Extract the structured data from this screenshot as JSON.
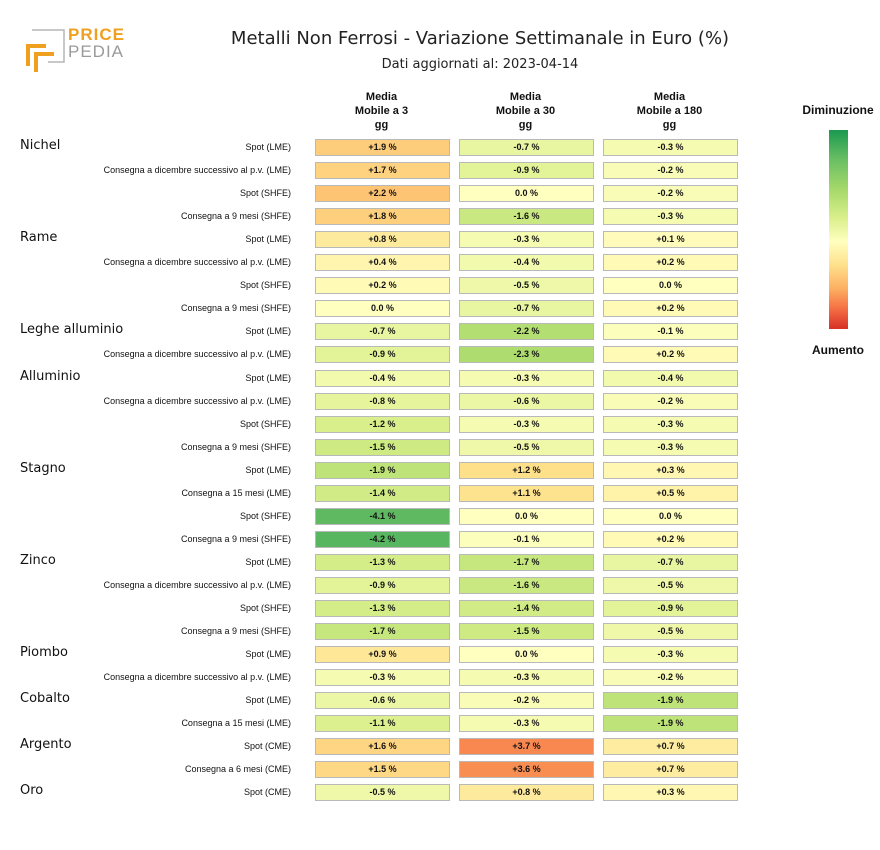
{
  "header": {
    "logo_primary": "PRICE",
    "logo_secondary": "PEDIA",
    "title": "Metalli Non Ferrosi - Variazione Settimanale in Euro (%)",
    "subtitle": "Dati aggiornati al: 2023-04-14"
  },
  "colors": {
    "logo_orange": "#f0a020",
    "logo_gray": "#9a9a9a",
    "scale_top": "#1a9850",
    "scale_mid": "#ffffbf",
    "scale_bottom": "#d73027"
  },
  "legend": {
    "top_label": "Diminuzione",
    "bottom_label": "Aumento"
  },
  "chart_data": {
    "type": "heatmap",
    "title": "Metalli Non Ferrosi - Variazione Settimanale in Euro (%)",
    "columns": [
      {
        "lines": [
          "Media",
          "Mobile a 3",
          "gg"
        ]
      },
      {
        "lines": [
          "Media",
          "Mobile a 30",
          "gg"
        ]
      },
      {
        "lines": [
          "Media",
          "Mobile a 180",
          "gg"
        ]
      }
    ],
    "value_suffix": " %",
    "color_range": [
      -5,
      5
    ],
    "groups": [
      {
        "name": "Nichel",
        "rows": [
          {
            "label": "Spot (LME)",
            "values": [
              1.9,
              -0.7,
              -0.3
            ]
          },
          {
            "label": "Consegna a dicembre successivo al p.v. (LME)",
            "values": [
              1.7,
              -0.9,
              -0.2
            ]
          },
          {
            "label": "Spot (SHFE)",
            "values": [
              2.2,
              0.0,
              -0.2
            ]
          },
          {
            "label": "Consegna a 9 mesi (SHFE)",
            "values": [
              1.8,
              -1.6,
              -0.3
            ]
          }
        ]
      },
      {
        "name": "Rame",
        "rows": [
          {
            "label": "Spot (LME)",
            "values": [
              0.8,
              -0.3,
              0.1
            ]
          },
          {
            "label": "Consegna a dicembre successivo al p.v. (LME)",
            "values": [
              0.4,
              -0.4,
              0.2
            ]
          },
          {
            "label": "Spot (SHFE)",
            "values": [
              0.2,
              -0.5,
              0.0
            ]
          },
          {
            "label": "Consegna a 9 mesi (SHFE)",
            "values": [
              0.0,
              -0.7,
              0.2
            ]
          }
        ]
      },
      {
        "name": "Leghe alluminio",
        "rows": [
          {
            "label": "Spot (LME)",
            "values": [
              -0.7,
              -2.2,
              -0.1
            ]
          },
          {
            "label": "Consegna a dicembre successivo al p.v. (LME)",
            "values": [
              -0.9,
              -2.3,
              0.2
            ]
          }
        ]
      },
      {
        "name": "Alluminio",
        "rows": [
          {
            "label": "Spot (LME)",
            "values": [
              -0.4,
              -0.3,
              -0.4
            ]
          },
          {
            "label": "Consegna a dicembre successivo al p.v. (LME)",
            "values": [
              -0.8,
              -0.6,
              -0.2
            ]
          },
          {
            "label": "Spot (SHFE)",
            "values": [
              -1.2,
              -0.3,
              -0.3
            ]
          },
          {
            "label": "Consegna a 9 mesi (SHFE)",
            "values": [
              -1.5,
              -0.5,
              -0.3
            ]
          }
        ]
      },
      {
        "name": "Stagno",
        "rows": [
          {
            "label": "Spot (LME)",
            "values": [
              -1.9,
              1.2,
              0.3
            ]
          },
          {
            "label": "Consegna a 15 mesi (LME)",
            "values": [
              -1.4,
              1.1,
              0.5
            ]
          },
          {
            "label": "Spot (SHFE)",
            "values": [
              -4.1,
              0.0,
              0.0
            ]
          },
          {
            "label": "Consegna a 9 mesi (SHFE)",
            "values": [
              -4.2,
              -0.1,
              0.2
            ]
          }
        ]
      },
      {
        "name": "Zinco",
        "rows": [
          {
            "label": "Spot (LME)",
            "values": [
              -1.3,
              -1.7,
              -0.7
            ]
          },
          {
            "label": "Consegna a dicembre successivo al p.v. (LME)",
            "values": [
              -0.9,
              -1.6,
              -0.5
            ]
          },
          {
            "label": "Spot (SHFE)",
            "values": [
              -1.3,
              -1.4,
              -0.9
            ]
          },
          {
            "label": "Consegna a 9 mesi (SHFE)",
            "values": [
              -1.7,
              -1.5,
              -0.5
            ]
          }
        ]
      },
      {
        "name": "Piombo",
        "rows": [
          {
            "label": "Spot (LME)",
            "values": [
              0.9,
              0.0,
              -0.3
            ]
          },
          {
            "label": "Consegna a dicembre successivo al p.v. (LME)",
            "values": [
              -0.3,
              -0.3,
              -0.2
            ]
          }
        ]
      },
      {
        "name": "Cobalto",
        "rows": [
          {
            "label": "Spot (LME)",
            "values": [
              -0.6,
              -0.2,
              -1.9
            ]
          },
          {
            "label": "Consegna a 15 mesi (LME)",
            "values": [
              -1.1,
              -0.3,
              -1.9
            ]
          }
        ]
      },
      {
        "name": "Argento",
        "rows": [
          {
            "label": "Spot (CME)",
            "values": [
              1.6,
              3.7,
              0.7
            ]
          },
          {
            "label": "Consegna a 6 mesi (CME)",
            "values": [
              1.5,
              3.6,
              0.7
            ]
          }
        ]
      },
      {
        "name": "Oro",
        "rows": [
          {
            "label": "Spot (CME)",
            "values": [
              -0.5,
              0.8,
              0.3
            ]
          }
        ]
      }
    ]
  }
}
